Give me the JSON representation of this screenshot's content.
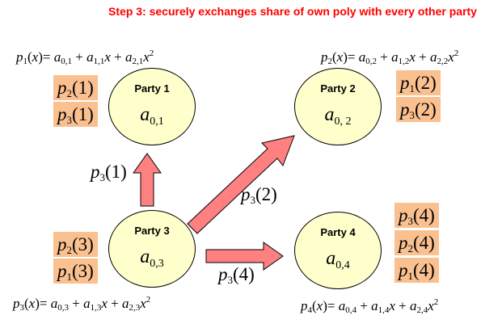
{
  "title": "Step 3: securely exchanges share of own poly with every other party",
  "parties": [
    {
      "name": "Party 1",
      "coef_sub": "0,1",
      "poly": {
        "sub": "1",
        "terms": [
          {
            "a": "0,1"
          },
          {
            "a": "1,1"
          },
          {
            "a": "2,1"
          }
        ]
      },
      "shares": [
        {
          "p": "2",
          "arg": "1"
        },
        {
          "p": "3",
          "arg": "1"
        }
      ]
    },
    {
      "name": "Party 2",
      "coef_sub": "0, 2",
      "poly": {
        "sub": "2",
        "terms": [
          {
            "a": "0,2"
          },
          {
            "a": "1,2"
          },
          {
            "a": "2,2"
          }
        ]
      },
      "shares": [
        {
          "p": "1",
          "arg": "2"
        },
        {
          "p": "3",
          "arg": "2"
        }
      ]
    },
    {
      "name": "Party 3",
      "coef_sub": "0,3",
      "poly": {
        "sub": "3",
        "terms": [
          {
            "a": "0,3"
          },
          {
            "a": "1,3"
          },
          {
            "a": "2,3"
          }
        ]
      },
      "shares": [
        {
          "p": "2",
          "arg": "3"
        },
        {
          "p": "1",
          "arg": "3"
        }
      ]
    },
    {
      "name": "Party 4",
      "coef_sub": "0,4",
      "poly": {
        "sub": "4",
        "terms": [
          {
            "a": "0,4"
          },
          {
            "a": "1,4"
          },
          {
            "a": "2,4"
          }
        ]
      },
      "shares": [
        {
          "p": "3",
          "arg": "4"
        },
        {
          "p": "2",
          "arg": "4"
        },
        {
          "p": "1",
          "arg": "4"
        }
      ]
    }
  ],
  "arrows": [
    {
      "from": "Party 3",
      "to": "Party 1",
      "p": "3",
      "arg": "1"
    },
    {
      "from": "Party 3",
      "to": "Party 2",
      "p": "3",
      "arg": "2"
    },
    {
      "from": "Party 3",
      "to": "Party 4",
      "p": "3",
      "arg": "4"
    }
  ],
  "colors": {
    "title": "#ff0000",
    "party_fill": "#ffffcc",
    "share_fill": "#fac090",
    "arrow_fill": "#ff8080"
  }
}
